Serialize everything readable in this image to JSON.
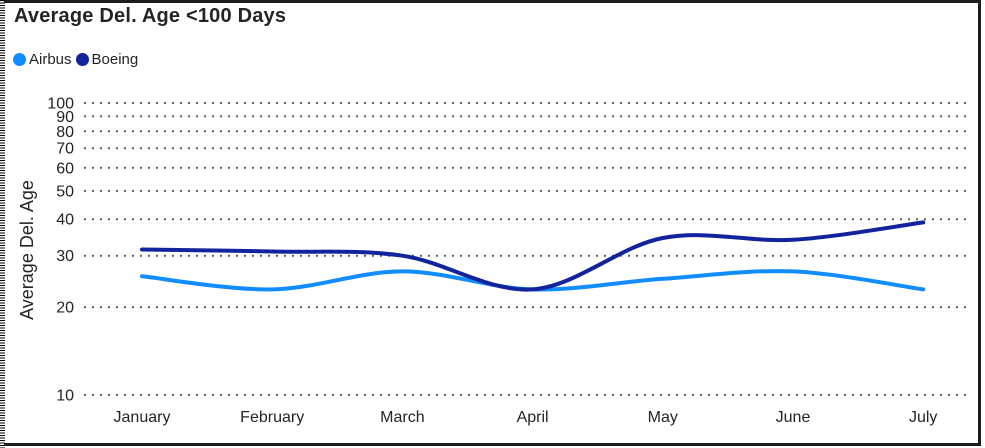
{
  "card": {
    "title": "Average Del. Age <100 Days"
  },
  "chart_data": {
    "type": "line",
    "title": "Average Del. Age <100 Days",
    "categories": [
      "January",
      "February",
      "March",
      "April",
      "May",
      "June",
      "July"
    ],
    "series": [
      {
        "name": "Airbus",
        "color": "#118DFF",
        "values": [
          25.5,
          23,
          26.5,
          23,
          25,
          26.5,
          23
        ]
      },
      {
        "name": "Boeing",
        "color": "#12239E",
        "values": [
          31.5,
          31,
          30,
          23,
          34.5,
          34,
          39
        ]
      }
    ],
    "xlabel": "",
    "ylabel": "Average Del. Age",
    "y_scale": "log",
    "ylim": [
      10,
      100
    ],
    "yticks": [
      10,
      20,
      30,
      40,
      50,
      60,
      70,
      80,
      90,
      100
    ],
    "grid": "dotted-horizontal",
    "legend_position": "top-left",
    "line_smooth": true
  },
  "colors": {
    "grid_dots": "#5f5f5f",
    "text": "#252423",
    "border": "#1c1c1c",
    "background": "#ffffff"
  }
}
